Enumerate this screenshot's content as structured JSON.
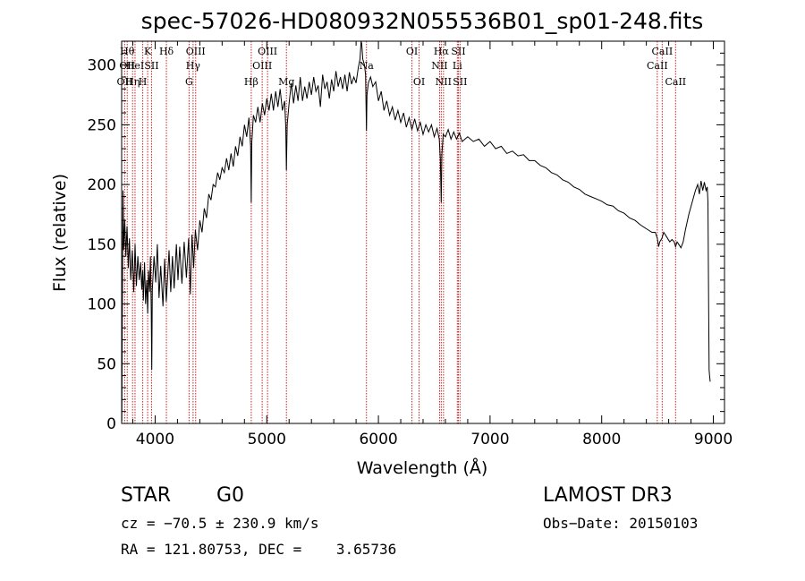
{
  "chart_data": {
    "type": "line",
    "title": "spec-57026-HD080932N055536B01_sp01-248.fits",
    "xlabel": "Wavelength (Å)",
    "ylabel": "Flux (relative)",
    "xlim": [
      3700,
      9100
    ],
    "ylim": [
      0,
      320
    ],
    "xticks": [
      4000,
      5000,
      6000,
      7000,
      8000,
      9000
    ],
    "yticks": [
      0,
      50,
      100,
      150,
      200,
      250,
      300
    ],
    "grid": false,
    "series": [
      {
        "name": "Spectrum",
        "points": [
          [
            3702,
            2
          ],
          [
            3705,
            75
          ],
          [
            3712,
            195
          ],
          [
            3718,
            145
          ],
          [
            3728,
            170
          ],
          [
            3738,
            140
          ],
          [
            3748,
            165
          ],
          [
            3760,
            130
          ],
          [
            3770,
            155
          ],
          [
            3782,
            120
          ],
          [
            3795,
            145
          ],
          [
            3808,
            110
          ],
          [
            3820,
            150
          ],
          [
            3832,
            115
          ],
          [
            3845,
            140
          ],
          [
            3858,
            120
          ],
          [
            3870,
            135
          ],
          [
            3880,
            112
          ],
          [
            3888,
            128
          ],
          [
            3895,
            103
          ],
          [
            3905,
            135
          ],
          [
            3915,
            100
          ],
          [
            3925,
            120
          ],
          [
            3933,
            92
          ],
          [
            3940,
            128
          ],
          [
            3950,
            110
          ],
          [
            3958,
            140
          ],
          [
            3965,
            95
          ],
          [
            3970,
            45
          ],
          [
            3975,
            112
          ],
          [
            3990,
            140
          ],
          [
            4005,
            118
          ],
          [
            4020,
            150
          ],
          [
            4035,
            105
          ],
          [
            4050,
            132
          ],
          [
            4070,
            98
          ],
          [
            4085,
            138
          ],
          [
            4100,
            102
          ],
          [
            4110,
            120
          ],
          [
            4125,
            145
          ],
          [
            4140,
            110
          ],
          [
            4155,
            140
          ],
          [
            4170,
            113
          ],
          [
            4190,
            150
          ],
          [
            4205,
            120
          ],
          [
            4220,
            148
          ],
          [
            4240,
            117
          ],
          [
            4260,
            152
          ],
          [
            4280,
            122
          ],
          [
            4300,
            155
          ],
          [
            4315,
            108
          ],
          [
            4330,
            158
          ],
          [
            4345,
            130
          ],
          [
            4360,
            162
          ],
          [
            4380,
            145
          ],
          [
            4400,
            170
          ],
          [
            4420,
            160
          ],
          [
            4440,
            180
          ],
          [
            4460,
            172
          ],
          [
            4480,
            192
          ],
          [
            4500,
            187
          ],
          [
            4520,
            200
          ],
          [
            4540,
            198
          ],
          [
            4560,
            210
          ],
          [
            4580,
            204
          ],
          [
            4600,
            214
          ],
          [
            4620,
            210
          ],
          [
            4640,
            222
          ],
          [
            4660,
            212
          ],
          [
            4680,
            226
          ],
          [
            4700,
            215
          ],
          [
            4720,
            232
          ],
          [
            4740,
            224
          ],
          [
            4760,
            240
          ],
          [
            4780,
            232
          ],
          [
            4800,
            250
          ],
          [
            4820,
            240
          ],
          [
            4840,
            256
          ],
          [
            4855,
            232
          ],
          [
            4861,
            185
          ],
          [
            4866,
            235
          ],
          [
            4880,
            258
          ],
          [
            4900,
            252
          ],
          [
            4920,
            265
          ],
          [
            4940,
            252
          ],
          [
            4960,
            268
          ],
          [
            4980,
            258
          ],
          [
            5000,
            272
          ],
          [
            5020,
            262
          ],
          [
            5040,
            276
          ],
          [
            5060,
            262
          ],
          [
            5080,
            278
          ],
          [
            5100,
            265
          ],
          [
            5120,
            280
          ],
          [
            5140,
            262
          ],
          [
            5160,
            270
          ],
          [
            5170,
            248
          ],
          [
            5176,
            212
          ],
          [
            5183,
            250
          ],
          [
            5200,
            268
          ],
          [
            5220,
            285
          ],
          [
            5240,
            268
          ],
          [
            5260,
            283
          ],
          [
            5280,
            270
          ],
          [
            5300,
            290
          ],
          [
            5320,
            270
          ],
          [
            5340,
            282
          ],
          [
            5360,
            272
          ],
          [
            5380,
            286
          ],
          [
            5400,
            275
          ],
          [
            5420,
            290
          ],
          [
            5440,
            278
          ],
          [
            5460,
            283
          ],
          [
            5480,
            265
          ],
          [
            5500,
            292
          ],
          [
            5520,
            280
          ],
          [
            5540,
            286
          ],
          [
            5560,
            272
          ],
          [
            5580,
            288
          ],
          [
            5600,
            278
          ],
          [
            5620,
            295
          ],
          [
            5640,
            282
          ],
          [
            5660,
            290
          ],
          [
            5680,
            280
          ],
          [
            5700,
            292
          ],
          [
            5720,
            278
          ],
          [
            5740,
            294
          ],
          [
            5760,
            284
          ],
          [
            5780,
            290
          ],
          [
            5800,
            285
          ],
          [
            5820,
            298
          ],
          [
            5835,
            305
          ],
          [
            5845,
            322
          ],
          [
            5850,
            318
          ],
          [
            5860,
            305
          ],
          [
            5875,
            300
          ],
          [
            5885,
            292
          ],
          [
            5893,
            245
          ],
          [
            5898,
            275
          ],
          [
            5910,
            285
          ],
          [
            5930,
            290
          ],
          [
            5950,
            282
          ],
          [
            5975,
            286
          ],
          [
            6000,
            270
          ],
          [
            6025,
            278
          ],
          [
            6050,
            262
          ],
          [
            6075,
            270
          ],
          [
            6100,
            258
          ],
          [
            6125,
            265
          ],
          [
            6150,
            254
          ],
          [
            6175,
            262
          ],
          [
            6200,
            252
          ],
          [
            6225,
            260
          ],
          [
            6250,
            248
          ],
          [
            6275,
            256
          ],
          [
            6300,
            246
          ],
          [
            6325,
            255
          ],
          [
            6350,
            245
          ],
          [
            6375,
            252
          ],
          [
            6400,
            242
          ],
          [
            6425,
            250
          ],
          [
            6450,
            244
          ],
          [
            6475,
            250
          ],
          [
            6500,
            240
          ],
          [
            6525,
            247
          ],
          [
            6545,
            238
          ],
          [
            6555,
            222
          ],
          [
            6563,
            185
          ],
          [
            6568,
            225
          ],
          [
            6580,
            242
          ],
          [
            6600,
            240
          ],
          [
            6625,
            246
          ],
          [
            6650,
            238
          ],
          [
            6675,
            244
          ],
          [
            6700,
            238
          ],
          [
            6725,
            243
          ],
          [
            6750,
            236
          ],
          [
            6800,
            240
          ],
          [
            6850,
            236
          ],
          [
            6900,
            238
          ],
          [
            6950,
            232
          ],
          [
            7000,
            236
          ],
          [
            7050,
            230
          ],
          [
            7100,
            232
          ],
          [
            7150,
            226
          ],
          [
            7200,
            228
          ],
          [
            7250,
            224
          ],
          [
            7300,
            225
          ],
          [
            7350,
            220
          ],
          [
            7400,
            220
          ],
          [
            7450,
            216
          ],
          [
            7500,
            214
          ],
          [
            7550,
            210
          ],
          [
            7600,
            208
          ],
          [
            7650,
            204
          ],
          [
            7700,
            202
          ],
          [
            7750,
            198
          ],
          [
            7800,
            196
          ],
          [
            7850,
            192
          ],
          [
            7900,
            190
          ],
          [
            7950,
            188
          ],
          [
            8000,
            186
          ],
          [
            8050,
            183
          ],
          [
            8100,
            182
          ],
          [
            8150,
            178
          ],
          [
            8200,
            176
          ],
          [
            8250,
            172
          ],
          [
            8300,
            170
          ],
          [
            8350,
            166
          ],
          [
            8400,
            163
          ],
          [
            8450,
            160
          ],
          [
            8480,
            160
          ],
          [
            8498,
            155
          ],
          [
            8510,
            148
          ],
          [
            8520,
            152
          ],
          [
            8540,
            155
          ],
          [
            8555,
            160
          ],
          [
            8570,
            158
          ],
          [
            8590,
            155
          ],
          [
            8610,
            152
          ],
          [
            8630,
            154
          ],
          [
            8650,
            152
          ],
          [
            8662,
            148
          ],
          [
            8675,
            152
          ],
          [
            8690,
            150
          ],
          [
            8710,
            147
          ],
          [
            8730,
            152
          ],
          [
            8750,
            162
          ],
          [
            8780,
            175
          ],
          [
            8810,
            185
          ],
          [
            8840,
            195
          ],
          [
            8860,
            200
          ],
          [
            8875,
            192
          ],
          [
            8890,
            203
          ],
          [
            8905,
            195
          ],
          [
            8920,
            202
          ],
          [
            8935,
            195
          ],
          [
            8945,
            198
          ],
          [
            8952,
            185
          ],
          [
            8958,
            95
          ],
          [
            8962,
            45
          ],
          [
            8966,
            40
          ],
          [
            8972,
            35
          ]
        ]
      }
    ],
    "line_markers": [
      {
        "wavelength": 3727,
        "label": "OII",
        "row": 3
      },
      {
        "wavelength": 3750,
        "label": "Hθ",
        "row": 1
      },
      {
        "wavelength": 3750,
        "label": "OII",
        "row": 2
      },
      {
        "wavelength": 3798,
        "label": "Hη",
        "row": 3
      },
      {
        "wavelength": 3820,
        "label": "HeI",
        "row": 2
      },
      {
        "wavelength": 3889,
        "label": "H",
        "row": 3
      },
      {
        "wavelength": 3933,
        "label": "K",
        "row": 1
      },
      {
        "wavelength": 3968,
        "label": "SII",
        "row": 2
      },
      {
        "wavelength": 4101,
        "label": "Hδ",
        "row": 1
      },
      {
        "wavelength": 4304,
        "label": "G",
        "row": 3
      },
      {
        "wavelength": 4340,
        "label": "Hγ",
        "row": 2
      },
      {
        "wavelength": 4363,
        "label": "OIII",
        "row": 1
      },
      {
        "wavelength": 4861,
        "label": "Hβ",
        "row": 3
      },
      {
        "wavelength": 4959,
        "label": "OIII",
        "row": 2
      },
      {
        "wavelength": 5007,
        "label": "OIII",
        "row": 1
      },
      {
        "wavelength": 5176,
        "label": "Mg",
        "row": 3
      },
      {
        "wavelength": 5893,
        "label": "Na",
        "row": 2
      },
      {
        "wavelength": 6300,
        "label": "OI",
        "row": 1
      },
      {
        "wavelength": 6364,
        "label": "OI",
        "row": 3
      },
      {
        "wavelength": 6548,
        "label": "NII",
        "row": 2
      },
      {
        "wavelength": 6563,
        "label": "Hα",
        "row": 1
      },
      {
        "wavelength": 6583,
        "label": "NII",
        "row": 3
      },
      {
        "wavelength": 6707,
        "label": "Li",
        "row": 2
      },
      {
        "wavelength": 6716,
        "label": "SII",
        "row": 1
      },
      {
        "wavelength": 6731,
        "label": "SII",
        "row": 3
      },
      {
        "wavelength": 8498,
        "label": "CaII",
        "row": 2
      },
      {
        "wavelength": 8542,
        "label": "CaII",
        "row": 1
      },
      {
        "wavelength": 8662,
        "label": "CaII",
        "row": 3
      }
    ]
  },
  "info": {
    "class": "STAR",
    "subclass": "G0",
    "survey": "LAMOST DR3",
    "cz": "cz = −70.5 ± 230.9 km/s",
    "obs_date": "Obs−Date: 20150103",
    "coords": "RA = 121.80753, DEC =    3.65736"
  },
  "colors": {
    "line": "#000000",
    "marker": "#cc2222",
    "text": "#000000",
    "background": "#ffffff"
  }
}
